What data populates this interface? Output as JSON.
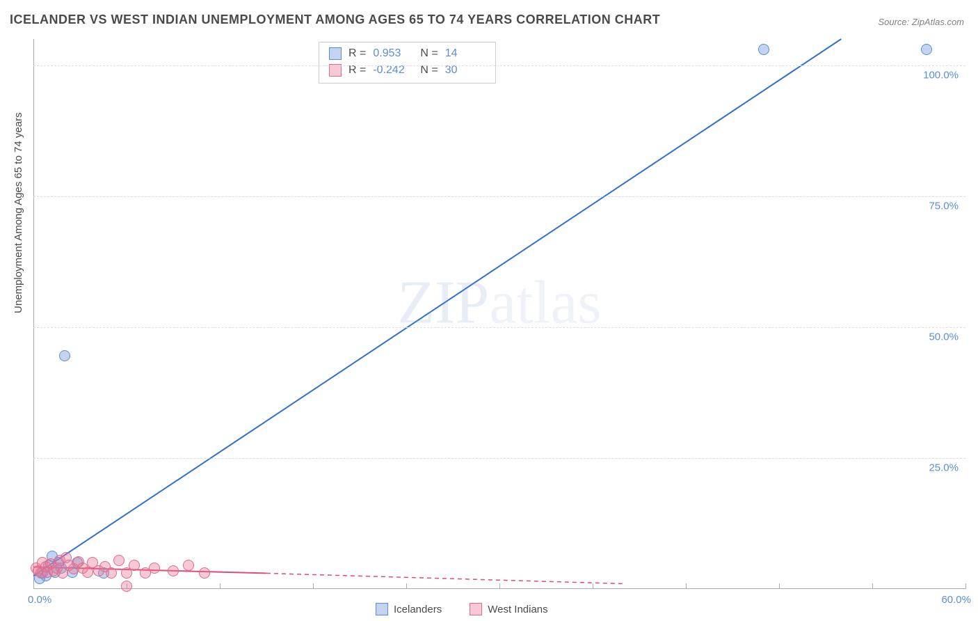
{
  "title": "ICELANDER VS WEST INDIAN UNEMPLOYMENT AMONG AGES 65 TO 74 YEARS CORRELATION CHART",
  "source": "Source: ZipAtlas.com",
  "ylabel": "Unemployment Among Ages 65 to 74 years",
  "watermark_a": "ZIP",
  "watermark_b": "atlas",
  "chart": {
    "type": "scatter",
    "background_color": "#ffffff",
    "grid_color": "#dddddd",
    "axis_color": "#aaaaaa",
    "tick_label_color": "#5b8dd6",
    "xlim": [
      0,
      60
    ],
    "ylim": [
      0,
      105
    ],
    "yticks": [
      25,
      50,
      75,
      100
    ],
    "ytick_labels": [
      "25.0%",
      "50.0%",
      "75.0%",
      "100.0%"
    ],
    "xticks": [
      0,
      6,
      12,
      18,
      24,
      30,
      36,
      42,
      48,
      54,
      60
    ],
    "xlabel_min": "0.0%",
    "xlabel_max": "60.0%",
    "series": [
      {
        "name": "Icelanders",
        "color_fill": "rgba(120,160,220,0.45)",
        "color_stroke": "#5b8dd6",
        "trend_color": "#2f6fd0",
        "trend_width": 2,
        "marker_radius": 8,
        "R": "0.953",
        "N": "14",
        "points": [
          [
            0.4,
            2.0
          ],
          [
            0.6,
            3.0
          ],
          [
            0.8,
            2.5
          ],
          [
            1.0,
            4.5
          ],
          [
            1.2,
            6.2
          ],
          [
            1.4,
            3.2
          ],
          [
            1.6,
            5.0
          ],
          [
            1.8,
            4.0
          ],
          [
            2.5,
            3.2
          ],
          [
            2.8,
            5.0
          ],
          [
            4.5,
            3.0
          ],
          [
            2.0,
            44.5
          ],
          [
            47.0,
            103.0
          ],
          [
            57.5,
            103.0
          ]
        ],
        "trend": {
          "x1": 0,
          "y1": 2.5,
          "x2": 52,
          "y2": 105
        }
      },
      {
        "name": "West Indians",
        "color_fill": "rgba(235,120,150,0.40)",
        "color_stroke": "#e06a8a",
        "trend_color": "#e04a78",
        "trend_width": 2,
        "marker_radius": 8,
        "R": "-0.242",
        "N": "30",
        "points": [
          [
            0.2,
            4.0
          ],
          [
            0.3,
            3.5
          ],
          [
            0.5,
            3.0
          ],
          [
            0.6,
            5.0
          ],
          [
            0.8,
            4.2
          ],
          [
            0.9,
            3.2
          ],
          [
            1.1,
            4.8
          ],
          [
            1.3,
            3.5
          ],
          [
            1.5,
            4.0
          ],
          [
            1.7,
            5.5
          ],
          [
            1.9,
            3.0
          ],
          [
            2.1,
            6.0
          ],
          [
            2.3,
            4.5
          ],
          [
            2.6,
            3.8
          ],
          [
            2.9,
            5.2
          ],
          [
            3.2,
            4.0
          ],
          [
            3.5,
            3.2
          ],
          [
            3.8,
            5.0
          ],
          [
            4.2,
            3.5
          ],
          [
            4.6,
            4.2
          ],
          [
            5.0,
            3.0
          ],
          [
            5.5,
            5.5
          ],
          [
            6.0,
            3.0
          ],
          [
            6.5,
            4.5
          ],
          [
            7.2,
            3.0
          ],
          [
            7.8,
            4.0
          ],
          [
            9.0,
            3.5
          ],
          [
            10.0,
            4.5
          ],
          [
            11.0,
            3.0
          ],
          [
            6.0,
            0.5
          ]
        ],
        "trend_solid": {
          "x1": 0,
          "y1": 4.2,
          "x2": 15,
          "y2": 3.0
        },
        "trend_dash": {
          "x1": 15,
          "y1": 3.0,
          "x2": 38,
          "y2": 1.0
        }
      }
    ]
  },
  "stats_box": {
    "rows": [
      {
        "swatch_fill": "rgba(120,160,220,0.45)",
        "swatch_stroke": "#5b8dd6",
        "r_label": "R =",
        "r_val": "0.953",
        "n_label": "N =",
        "n_val": "14"
      },
      {
        "swatch_fill": "rgba(235,120,150,0.40)",
        "swatch_stroke": "#e06a8a",
        "r_label": "R =",
        "r_val": "-0.242",
        "n_label": "N =",
        "n_val": "30"
      }
    ]
  },
  "legend": {
    "items": [
      {
        "swatch_fill": "rgba(120,160,220,0.45)",
        "swatch_stroke": "#5b8dd6",
        "label": "Icelanders"
      },
      {
        "swatch_fill": "rgba(235,120,150,0.40)",
        "swatch_stroke": "#e06a8a",
        "label": "West Indians"
      }
    ]
  }
}
